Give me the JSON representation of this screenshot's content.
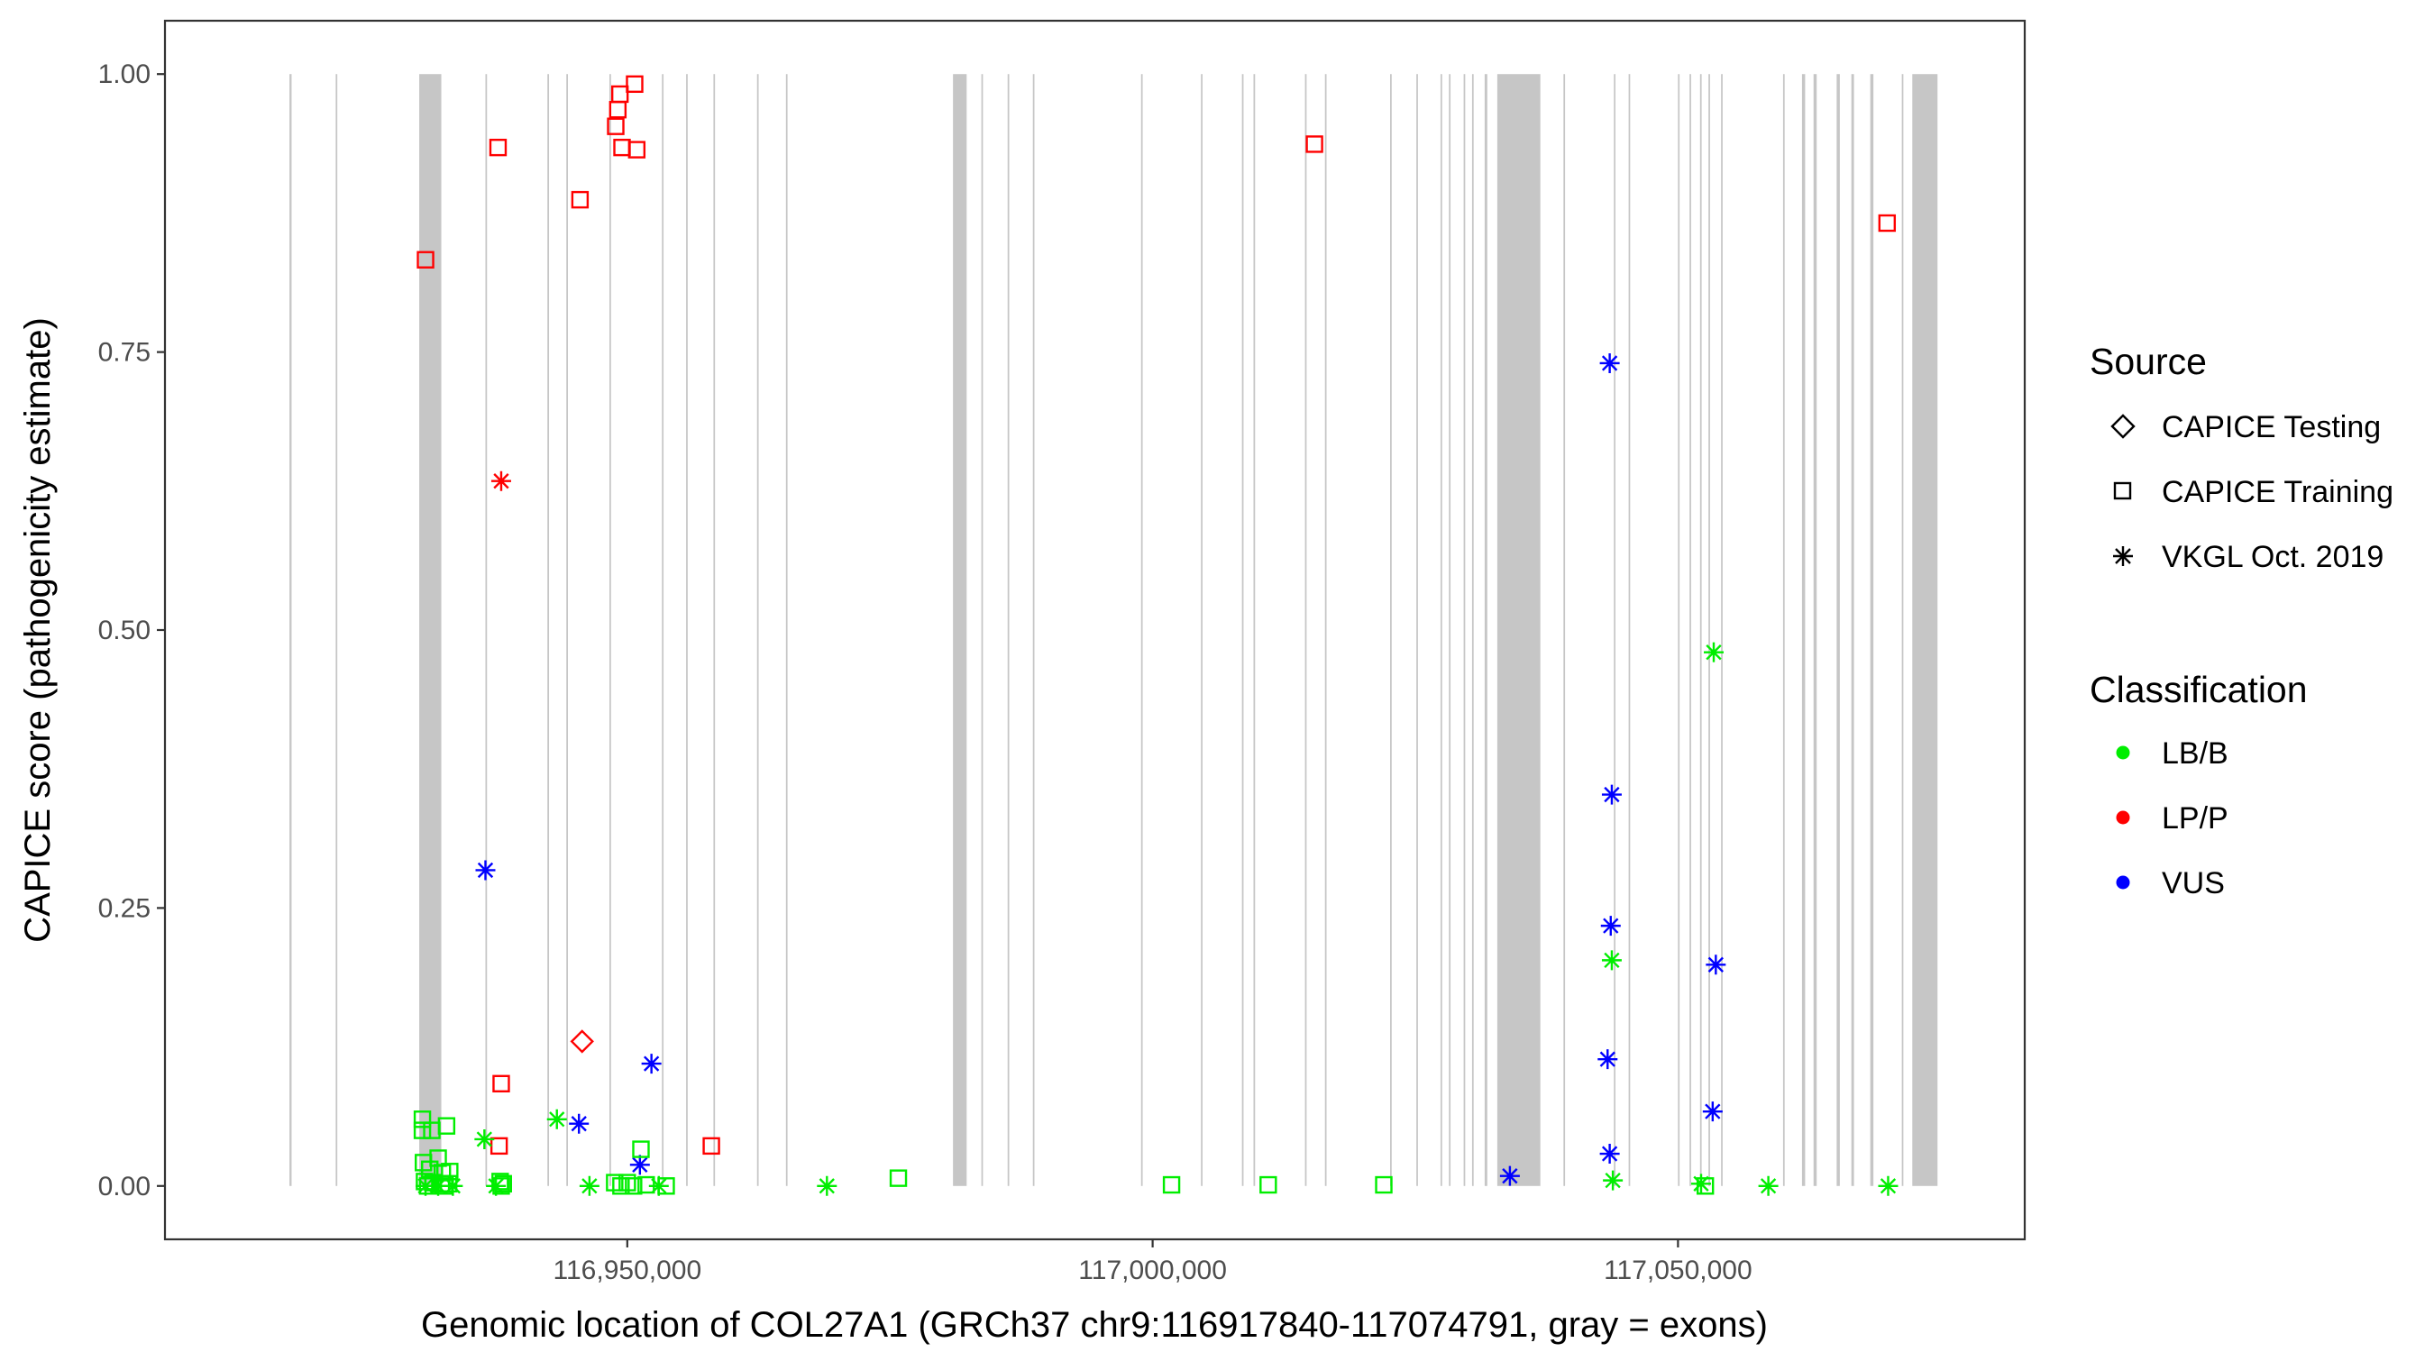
{
  "chart_data": {
    "type": "scatter",
    "xlabel": "Genomic location of COL27A1 (GRCh37 chr9:116917840-117074791, gray = exons)",
    "ylabel": "CAPICE score (pathogenicity estimate)",
    "xlim": [
      116906000,
      117083000
    ],
    "ylim": [
      -0.048,
      1.048
    ],
    "x_ticks": [
      116950000,
      117000000,
      117050000
    ],
    "x_tick_labels": [
      "116,950,000",
      "117,000,000",
      "117,050,000"
    ],
    "y_ticks": [
      0,
      0.25,
      0.5,
      0.75,
      1.0
    ],
    "y_tick_labels": [
      "0.00",
      "0.25",
      "0.50",
      "0.75",
      "1.00"
    ],
    "grid": false,
    "exons": [
      [
        116917850,
        116918050
      ],
      [
        116922250,
        116922400
      ],
      [
        116930200,
        116932300
      ],
      [
        116936500,
        116936650
      ],
      [
        116942400,
        116942550
      ],
      [
        116944200,
        116944350
      ],
      [
        116948300,
        116948450
      ],
      [
        116953300,
        116953450
      ],
      [
        116955600,
        116955750
      ],
      [
        116958200,
        116958350
      ],
      [
        116962350,
        116962500
      ],
      [
        116965100,
        116965250
      ],
      [
        116981000,
        116982300
      ],
      [
        116983700,
        116983850
      ],
      [
        116986200,
        116986350
      ],
      [
        116988600,
        116988750
      ],
      [
        116998900,
        116999050
      ],
      [
        117004600,
        117004750
      ],
      [
        117008500,
        117008650
      ],
      [
        117009600,
        117009750
      ],
      [
        117014500,
        117014650
      ],
      [
        117016400,
        117016550
      ],
      [
        117022600,
        117022750
      ],
      [
        117025100,
        117025250
      ],
      [
        117027400,
        117027550
      ],
      [
        117028200,
        117028350
      ],
      [
        117029600,
        117029750
      ],
      [
        117030400,
        117030550
      ],
      [
        117031600,
        117031850
      ],
      [
        117032800,
        117036900
      ],
      [
        117039100,
        117039250
      ],
      [
        117043900,
        117044050
      ],
      [
        117045300,
        117045450
      ],
      [
        117050000,
        117050150
      ],
      [
        117051100,
        117051250
      ],
      [
        117052100,
        117052250
      ],
      [
        117052900,
        117053050
      ],
      [
        117054100,
        117054250
      ],
      [
        117060000,
        117060150
      ],
      [
        117061800,
        117062100
      ],
      [
        117062900,
        117063200
      ],
      [
        117065100,
        117065400
      ],
      [
        117066500,
        117066750
      ],
      [
        117068300,
        117068600
      ],
      [
        117071300,
        117071450
      ],
      [
        117072300,
        117074700
      ]
    ],
    "legend": {
      "placement": "right",
      "source_title": "Source",
      "source_entries": [
        {
          "label": "CAPICE Testing",
          "shape": "diamond"
        },
        {
          "label": "CAPICE Training",
          "shape": "square"
        },
        {
          "label": "VKGL Oct. 2019",
          "shape": "asterisk"
        }
      ],
      "class_title": "Classification",
      "class_entries": [
        {
          "label": "LB/B",
          "color": "#00ee00"
        },
        {
          "label": "LP/P",
          "color": "#ff0000"
        },
        {
          "label": "VUS",
          "color": "#0000ff"
        }
      ]
    },
    "series": [
      {
        "source": "CAPICE Training",
        "classification": "LP/P",
        "shape": "square",
        "color": "#ff0000",
        "points": [
          [
            116930800,
            0.833
          ],
          [
            116937700,
            0.934
          ],
          [
            116945500,
            0.887
          ],
          [
            116948900,
            0.953
          ],
          [
            116949100,
            0.968
          ],
          [
            116949300,
            0.982
          ],
          [
            116949500,
            0.934
          ],
          [
            116950700,
            0.991
          ],
          [
            116950900,
            0.932
          ],
          [
            117015400,
            0.937
          ],
          [
            117069900,
            0.866
          ],
          [
            116938000,
            0.092
          ],
          [
            116937800,
            0.036
          ],
          [
            116958000,
            0.036
          ]
        ]
      },
      {
        "source": "CAPICE Testing",
        "classification": "LP/P",
        "shape": "diamond",
        "color": "#ff0000",
        "points": [
          [
            116945700,
            0.13
          ]
        ]
      },
      {
        "source": "VKGL Oct. 2019",
        "classification": "LP/P",
        "shape": "asterisk",
        "color": "#ff0000",
        "points": [
          [
            116938000,
            0.634
          ]
        ]
      },
      {
        "source": "VKGL Oct. 2019",
        "classification": "VUS",
        "shape": "asterisk",
        "color": "#0000ff",
        "points": [
          [
            116936500,
            0.284
          ],
          [
            116945400,
            0.056
          ],
          [
            116952300,
            0.11
          ],
          [
            116951200,
            0.019
          ],
          [
            117034000,
            0.009
          ],
          [
            117043500,
            0.74
          ],
          [
            117043700,
            0.352
          ],
          [
            117043600,
            0.234
          ],
          [
            117043300,
            0.114
          ],
          [
            117043500,
            0.029
          ],
          [
            117053600,
            0.199
          ],
          [
            117053300,
            0.067
          ]
        ]
      },
      {
        "source": "VKGL Oct. 2019",
        "classification": "LB/B",
        "shape": "asterisk",
        "color": "#00ee00",
        "points": [
          [
            117053400,
            0.48
          ],
          [
            117043700,
            0.203
          ],
          [
            116936400,
            0.042
          ],
          [
            116943300,
            0.06
          ],
          [
            116930800,
            0.0
          ],
          [
            116932000,
            0.0
          ],
          [
            116933400,
            0.0
          ],
          [
            116937500,
            0.0
          ],
          [
            116946400,
            0.0
          ],
          [
            116953000,
            0.0
          ],
          [
            116969000,
            0.0
          ],
          [
            117043800,
            0.005
          ],
          [
            117052200,
            0.002
          ],
          [
            117058600,
            0.0
          ],
          [
            117070000,
            0.0
          ]
        ]
      },
      {
        "source": "CAPICE Training",
        "classification": "LB/B",
        "shape": "square",
        "color": "#00ee00",
        "points": [
          [
            116930500,
            0.06
          ],
          [
            116930500,
            0.05
          ],
          [
            116931400,
            0.05
          ],
          [
            116932000,
            0.025
          ],
          [
            116932800,
            0.054
          ],
          [
            116930600,
            0.021
          ],
          [
            116931200,
            0.015
          ],
          [
            116932400,
            0.012
          ],
          [
            116933100,
            0.013
          ],
          [
            116930700,
            0.004
          ],
          [
            116931500,
            0.003
          ],
          [
            116932300,
            0.002
          ],
          [
            116933000,
            0.002
          ],
          [
            116931000,
            0.0
          ],
          [
            116932600,
            0.0
          ],
          [
            116937900,
            0.004
          ],
          [
            116938200,
            0.002
          ],
          [
            116938000,
            0.0
          ],
          [
            116948800,
            0.003
          ],
          [
            116949400,
            0.0
          ],
          [
            116950000,
            0.003
          ],
          [
            116950600,
            0.0
          ],
          [
            116951300,
            0.033
          ],
          [
            116951800,
            0.001
          ],
          [
            116953700,
            0.0
          ],
          [
            116975800,
            0.007
          ],
          [
            117001800,
            0.001
          ],
          [
            117011000,
            0.001
          ],
          [
            117022000,
            0.001
          ],
          [
            117052600,
            0.0
          ]
        ]
      }
    ]
  }
}
